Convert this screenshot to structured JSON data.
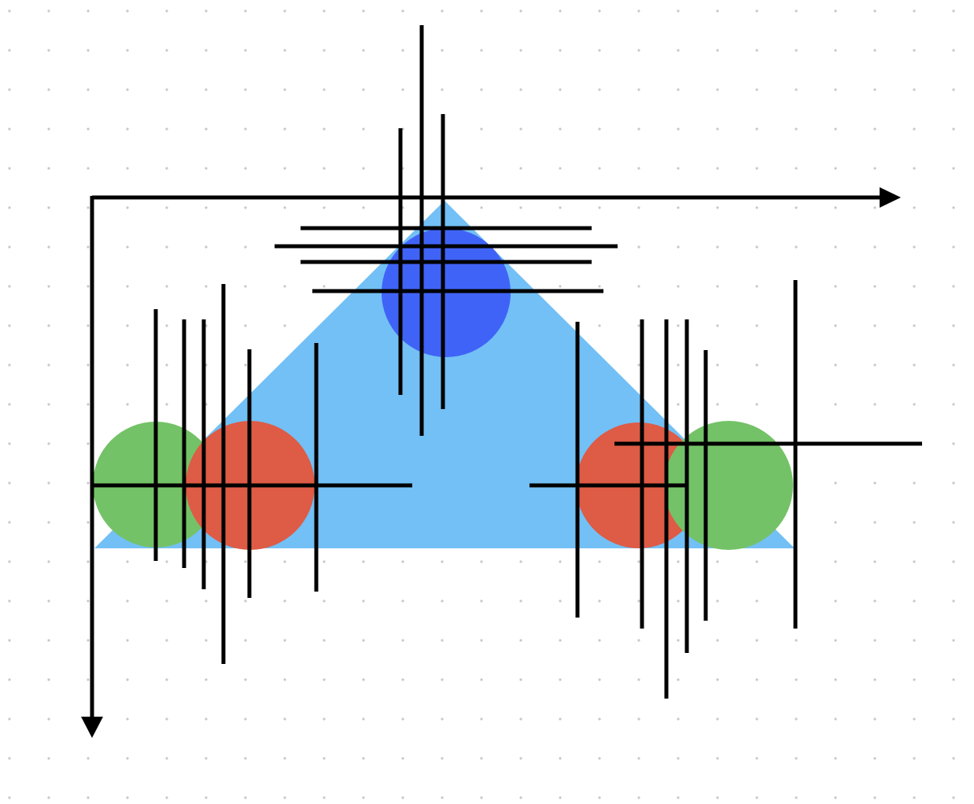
{
  "canvas": {
    "background": "#ffffff",
    "grid": true,
    "grid_dot_color": "#c8c8c8"
  },
  "colors": {
    "triangle": "#72c0f5",
    "blue_circle": "#4063f7",
    "red_circle": "#de5b45",
    "green_circle": "#74c267",
    "line": "#000000"
  },
  "axes": {
    "x_direction": "right",
    "y_direction": "down",
    "arrowheads": true
  },
  "shapes": {
    "triangle": "light-blue-triangle",
    "circles": [
      "blue-circle-top",
      "green-circle-left",
      "red-circle-left",
      "red-circle-right",
      "green-circle-right"
    ]
  }
}
